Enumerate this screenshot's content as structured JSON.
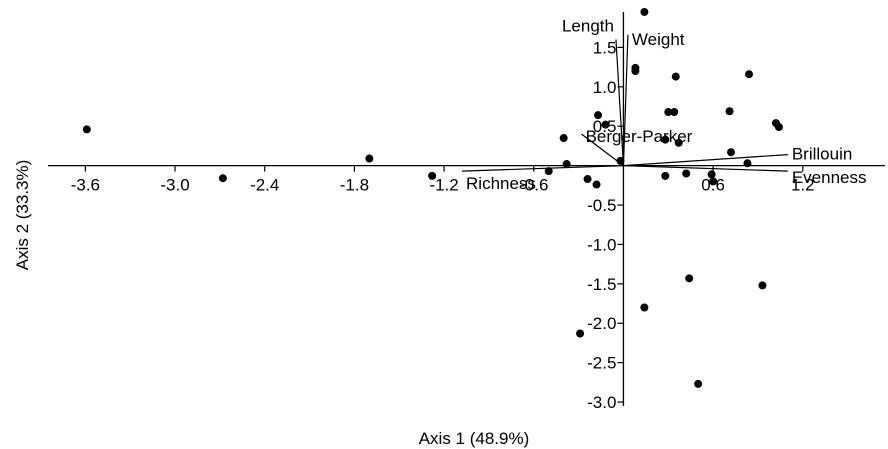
{
  "chart_data": {
    "type": "scatter",
    "title": "",
    "xlabel": "Axis 1 (48.9%)",
    "ylabel": "Axis 2 (33.3%)",
    "xlim": [
      -3.85,
      1.75
    ],
    "ylim": [
      -3.05,
      2.0
    ],
    "xticks": [
      -3.6,
      -3.0,
      -2.4,
      -1.8,
      -1.2,
      -0.6,
      0.6,
      1.2
    ],
    "xtick_labels": [
      "-3.6",
      "-3.0",
      "-2.4",
      "-1.8",
      "-1.2",
      "-0.6",
      "0.6",
      "1.2"
    ],
    "yticks": [
      1.5,
      1.0,
      0.5,
      -0.5,
      -1.0,
      -1.5,
      -2.0,
      -2.5,
      -3.0
    ],
    "ytick_labels": [
      "1.5",
      "1.0",
      "0.5",
      "-0.5",
      "-1.0",
      "-1.5",
      "-2.0",
      "-2.5",
      "-3.0"
    ],
    "grid": false,
    "points": [
      {
        "x": -3.59,
        "y": 0.46
      },
      {
        "x": -2.68,
        "y": -0.16
      },
      {
        "x": -1.7,
        "y": 0.09
      },
      {
        "x": -1.28,
        "y": -0.13
      },
      {
        "x": -0.5,
        "y": -0.07
      },
      {
        "x": -0.4,
        "y": 0.35
      },
      {
        "x": -0.38,
        "y": 0.02
      },
      {
        "x": -0.24,
        "y": -0.17
      },
      {
        "x": -0.18,
        "y": -0.24
      },
      {
        "x": -0.29,
        "y": -2.13
      },
      {
        "x": -0.02,
        "y": 0.06
      },
      {
        "x": -0.17,
        "y": 0.64
      },
      {
        "x": -0.12,
        "y": 0.52
      },
      {
        "x": 0.14,
        "y": 1.95
      },
      {
        "x": 0.08,
        "y": 1.24
      },
      {
        "x": 0.08,
        "y": 1.2
      },
      {
        "x": 0.35,
        "y": 1.13
      },
      {
        "x": 0.3,
        "y": 0.68
      },
      {
        "x": 0.34,
        "y": 0.68
      },
      {
        "x": 0.28,
        "y": 0.33
      },
      {
        "x": 0.37,
        "y": 0.29
      },
      {
        "x": 0.28,
        "y": -0.13
      },
      {
        "x": 0.42,
        "y": -0.1
      },
      {
        "x": 0.59,
        "y": -0.11
      },
      {
        "x": 0.6,
        "y": -0.2
      },
      {
        "x": 0.71,
        "y": 0.69
      },
      {
        "x": 0.72,
        "y": 0.17
      },
      {
        "x": 0.84,
        "y": 1.16
      },
      {
        "x": 0.83,
        "y": 0.03
      },
      {
        "x": 1.02,
        "y": 0.54
      },
      {
        "x": 1.04,
        "y": 0.49
      },
      {
        "x": 0.44,
        "y": -1.43
      },
      {
        "x": 0.14,
        "y": -1.8
      },
      {
        "x": 0.5,
        "y": -2.77
      },
      {
        "x": 0.93,
        "y": -1.52
      }
    ],
    "vectors": [
      {
        "name": "Length",
        "x": -0.05,
        "y": 1.6
      },
      {
        "name": "Weight",
        "x": 0.03,
        "y": 1.66
      },
      {
        "name": "Berger-Parker",
        "x": -0.28,
        "y": 0.4
      },
      {
        "name": "Brillouin",
        "x": 1.1,
        "y": 0.14
      },
      {
        "name": "Evenness",
        "x": 1.1,
        "y": -0.07
      },
      {
        "name": "Richness",
        "x": -1.08,
        "y": -0.07
      }
    ]
  }
}
